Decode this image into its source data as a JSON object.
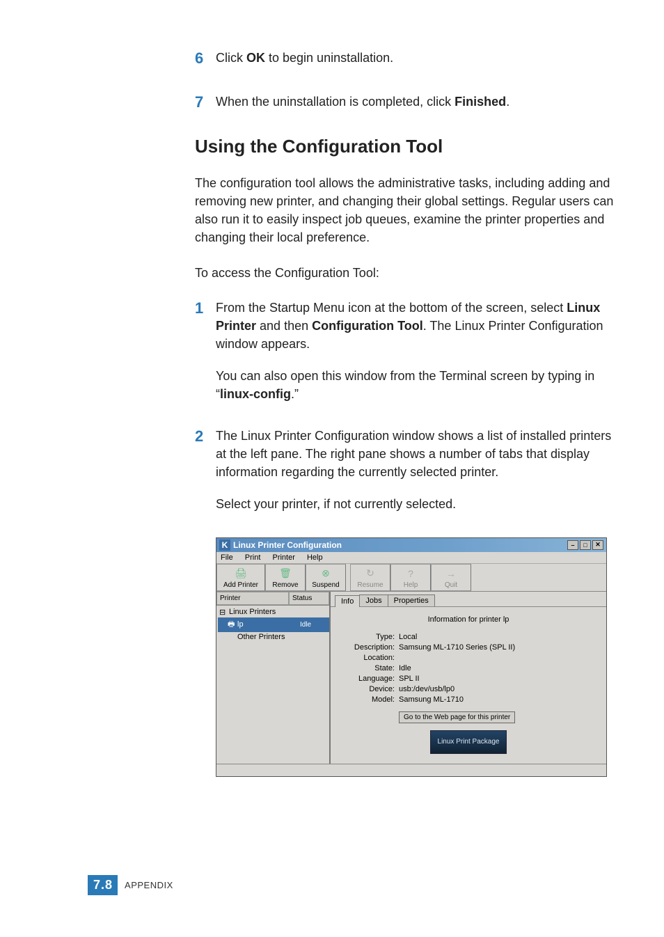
{
  "steps_top": [
    {
      "num": "6",
      "html": "Click <b>OK</b> to begin uninstallation."
    },
    {
      "num": "7",
      "html": "When the uninstallation is completed, click <b>Finished</b>."
    }
  ],
  "section_title": "Using the Configuration Tool",
  "intro_para": "The configuration tool allows the administrative tasks, including adding and removing new printer, and changing their global settings. Regular users can also run it to easily inspect job queues, examine the printer properties and changing their local preference.",
  "access_para": "To access the Configuration Tool:",
  "step1": {
    "num": "1",
    "p1": "From the Startup Menu icon at the bottom of the screen, select <b>Linux Printer</b> and then <b>Configuration Tool</b>. The Linux Printer Configuration window appears.",
    "p2": "You can also open this window from the Terminal screen by typing in “<b>linux-config</b>.”"
  },
  "step2": {
    "num": "2",
    "p1": "The Linux Printer Configuration window shows a list of installed printers at the left pane. The right pane shows a number of tabs that display information regarding the currently selected printer.",
    "p2": "Select your printer, if not currently selected."
  },
  "shot": {
    "title": "Linux Printer Configuration",
    "menus": [
      "File",
      "Print",
      "Printer",
      "Help"
    ],
    "toolbar": [
      {
        "label": "Add Printer",
        "icon": "🖨",
        "enabled": true
      },
      {
        "label": "Remove",
        "icon": "🗑",
        "enabled": true
      },
      {
        "label": "Suspend",
        "icon": "⊗",
        "enabled": true
      },
      {
        "label": "Resume",
        "icon": "↻",
        "enabled": false
      },
      {
        "label": "Help",
        "icon": "?",
        "enabled": false
      },
      {
        "label": "Quit",
        "icon": "→",
        "enabled": false
      }
    ],
    "left_headers": {
      "printer": "Printer",
      "status": "Status"
    },
    "tree": {
      "root": "Linux Printers",
      "selected": {
        "name": "lp",
        "status": "Idle"
      },
      "other": "Other Printers"
    },
    "tabs": [
      "Info",
      "Jobs",
      "Properties"
    ],
    "active_tab": "Info",
    "panel_title": "Information for printer lp",
    "kv": [
      {
        "k": "Type:",
        "v": "Local"
      },
      {
        "k": "Description:",
        "v": "Samsung ML-1710 Series (SPL II)"
      },
      {
        "k": "Location:",
        "v": ""
      },
      {
        "k": "State:",
        "v": "Idle"
      },
      {
        "k": "Language:",
        "v": "SPL II"
      },
      {
        "k": "Device:",
        "v": "usb:/dev/usb/lp0"
      },
      {
        "k": "Model:",
        "v": "Samsung ML-1710"
      }
    ],
    "web_button": "Go to the Web page for this printer",
    "logo_text": "Linux Print Package"
  },
  "footer": {
    "chapter": "7",
    "page": "8",
    "label": "APPENDIX"
  },
  "colors": {
    "accent": "#2a7ab8",
    "titlebar_from": "#5a8cbf",
    "titlebar_to": "#88b3d6",
    "selection": "#3a6ea5",
    "win_bg": "#d8d7d3"
  }
}
